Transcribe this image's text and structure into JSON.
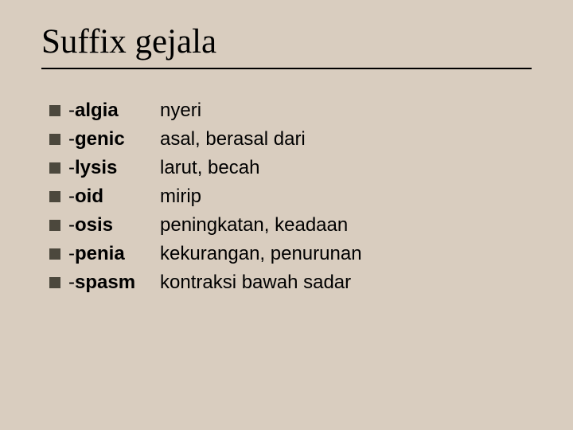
{
  "title": "Suffix gejala",
  "bullet_color": "#4c483d",
  "background_color": "#d9cdbf",
  "title_fontsize": 43,
  "body_fontsize": 24,
  "rows": [
    {
      "suffix": "-algia",
      "meaning": "nyeri"
    },
    {
      "suffix": "-genic",
      "meaning": "asal, berasal dari"
    },
    {
      "suffix": "-lysis",
      "meaning": "larut, becah"
    },
    {
      "suffix": "-oid",
      "meaning": "mirip"
    },
    {
      "suffix": "-osis",
      "meaning": "peningkatan, keadaan"
    },
    {
      "suffix": "-penia",
      "meaning": "kekurangan, penurunan"
    },
    {
      "suffix": "-spasm",
      "meaning": "kontraksi bawah sadar"
    }
  ]
}
